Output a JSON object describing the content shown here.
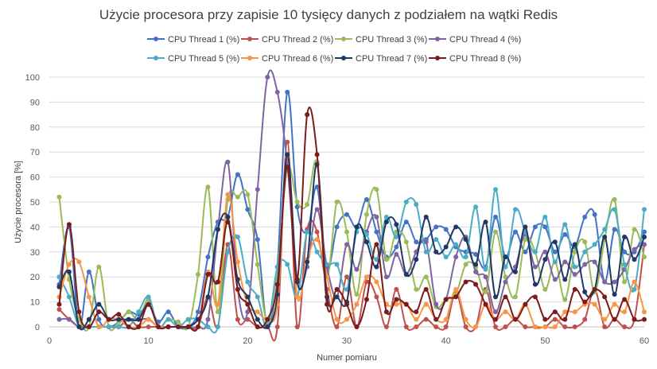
{
  "chart_data": {
    "type": "line",
    "title": "Użycie procesora przy zapisie 10 tysięcy danych z podziałem na wątki Redis",
    "xlabel": "Numer pomiaru",
    "ylabel": "Użycie procesora [%]",
    "xlim": [
      0,
      60
    ],
    "ylim": [
      0,
      100
    ],
    "x_ticks": [
      0,
      10,
      20,
      30,
      40,
      50,
      60
    ],
    "y_ticks": [
      0,
      10,
      20,
      30,
      40,
      50,
      60,
      70,
      80,
      90,
      100
    ],
    "grid": "horizontal",
    "legend_position": "top",
    "x": [
      1,
      2,
      3,
      4,
      5,
      6,
      7,
      8,
      9,
      10,
      11,
      12,
      13,
      14,
      15,
      16,
      17,
      18,
      19,
      20,
      21,
      22,
      23,
      24,
      25,
      26,
      27,
      28,
      29,
      30,
      31,
      32,
      33,
      34,
      35,
      36,
      37,
      38,
      39,
      40,
      41,
      42,
      43,
      44,
      45,
      46,
      47,
      48,
      49,
      50,
      51,
      52,
      53,
      54,
      55,
      56,
      57,
      58,
      59,
      60
    ],
    "series": [
      {
        "name": "CPU Thread 1 (%)",
        "color": "#4472C4",
        "values": [
          17,
          40,
          0,
          22,
          3,
          0,
          2,
          6,
          5,
          9,
          2,
          6,
          0,
          0,
          6,
          28,
          42,
          44,
          61,
          47,
          35,
          0,
          24,
          94,
          48,
          38,
          56,
          23,
          40,
          45,
          40,
          51,
          38,
          28,
          32,
          42,
          34,
          35,
          40,
          39,
          32,
          30,
          29,
          24,
          44,
          28,
          38,
          30,
          40,
          40,
          30,
          37,
          32,
          44,
          45,
          18,
          39,
          30,
          30,
          38
        ]
      },
      {
        "name": "CPU Thread 2 (%)",
        "color": "#C0504D",
        "values": [
          7,
          3,
          0,
          0,
          0,
          0,
          0,
          3,
          0,
          0,
          0,
          0,
          0,
          0,
          0,
          12,
          0,
          33,
          3,
          3,
          0,
          0,
          0,
          74,
          0,
          39,
          38,
          15,
          0,
          20,
          0,
          18,
          12,
          0,
          15,
          0,
          0,
          3,
          0,
          0,
          14,
          0,
          0,
          15,
          0,
          0,
          3,
          0,
          0,
          0,
          3,
          0,
          0,
          3,
          15,
          0,
          3,
          0,
          3,
          33
        ]
      },
      {
        "name": "CPU Thread 3 (%)",
        "color": "#9BBB59",
        "values": [
          52,
          19,
          3,
          0,
          24,
          0,
          2,
          6,
          3,
          11,
          0,
          3,
          2,
          0,
          21,
          56,
          6,
          51,
          52,
          53,
          25,
          2,
          21,
          64,
          50,
          49,
          66,
          21,
          50,
          38,
          13,
          45,
          55,
          27,
          38,
          34,
          15,
          20,
          8,
          11,
          13,
          25,
          24,
          14,
          38,
          20,
          12,
          35,
          30,
          15,
          26,
          11,
          30,
          34,
          14,
          35,
          51,
          18,
          39,
          28
        ]
      },
      {
        "name": "CPU Thread 4 (%)",
        "color": "#8064A2",
        "values": [
          3,
          3,
          0,
          0,
          0,
          0,
          0,
          3,
          3,
          3,
          0,
          0,
          0,
          0,
          0,
          3,
          39,
          66,
          15,
          6,
          55,
          100,
          94,
          65,
          18,
          24,
          47,
          24,
          12,
          33,
          23,
          38,
          44,
          20,
          29,
          21,
          30,
          34,
          9,
          11,
          28,
          36,
          22,
          20,
          6,
          18,
          24,
          37,
          24,
          30,
          19,
          26,
          21,
          25,
          26,
          18,
          18,
          23,
          31,
          33
        ]
      },
      {
        "name": "CPU Thread 5 (%)",
        "color": "#4BACC6",
        "values": [
          20,
          12,
          0,
          0,
          0,
          0,
          0,
          0,
          6,
          12,
          0,
          3,
          0,
          3,
          3,
          0,
          0,
          30,
          36,
          18,
          12,
          0,
          24,
          25,
          12,
          38,
          30,
          25,
          25,
          15,
          38,
          37,
          27,
          44,
          36,
          50,
          49,
          30,
          35,
          28,
          33,
          28,
          48,
          23,
          55,
          24,
          47,
          38,
          30,
          44,
          26,
          41,
          24,
          30,
          33,
          39,
          47,
          25,
          15,
          47
        ]
      },
      {
        "name": "CPU Thread 6 (%)",
        "color": "#F79646",
        "values": [
          12,
          25,
          26,
          12,
          0,
          3,
          3,
          0,
          0,
          3,
          0,
          0,
          0,
          0,
          0,
          22,
          9,
          53,
          26,
          9,
          6,
          3,
          9,
          68,
          12,
          27,
          35,
          20,
          3,
          3,
          9,
          20,
          18,
          9,
          9,
          9,
          3,
          9,
          3,
          3,
          15,
          3,
          0,
          9,
          3,
          6,
          3,
          9,
          0,
          0,
          0,
          6,
          6,
          9,
          9,
          3,
          9,
          6,
          18,
          6
        ]
      },
      {
        "name": "CPU Thread 7 (%)",
        "color": "#1F3864",
        "values": [
          16,
          22,
          0,
          3,
          9,
          3,
          3,
          3,
          3,
          9,
          0,
          0,
          0,
          0,
          3,
          12,
          39,
          44,
          19,
          12,
          3,
          0,
          13,
          69,
          18,
          26,
          65,
          12,
          12,
          10,
          40,
          34,
          24,
          42,
          41,
          21,
          27,
          44,
          30,
          32,
          40,
          35,
          25,
          42,
          12,
          28,
          22,
          40,
          17,
          27,
          34,
          19,
          33,
          14,
          15,
          36,
          13,
          36,
          27,
          36
        ]
      },
      {
        "name": "CPU Thread 8 (%)",
        "color": "#7B1C1C",
        "values": [
          9,
          41,
          6,
          0,
          6,
          3,
          5,
          0,
          0,
          9,
          0,
          0,
          0,
          0,
          0,
          21,
          18,
          42,
          15,
          9,
          0,
          3,
          17,
          64,
          19,
          85,
          69,
          9,
          15,
          9,
          0,
          11,
          33,
          6,
          11,
          9,
          6,
          15,
          3,
          11,
          12,
          18,
          17,
          9,
          3,
          12,
          3,
          9,
          12,
          3,
          6,
          3,
          15,
          10,
          15,
          12,
          3,
          11,
          3,
          3
        ]
      }
    ]
  }
}
